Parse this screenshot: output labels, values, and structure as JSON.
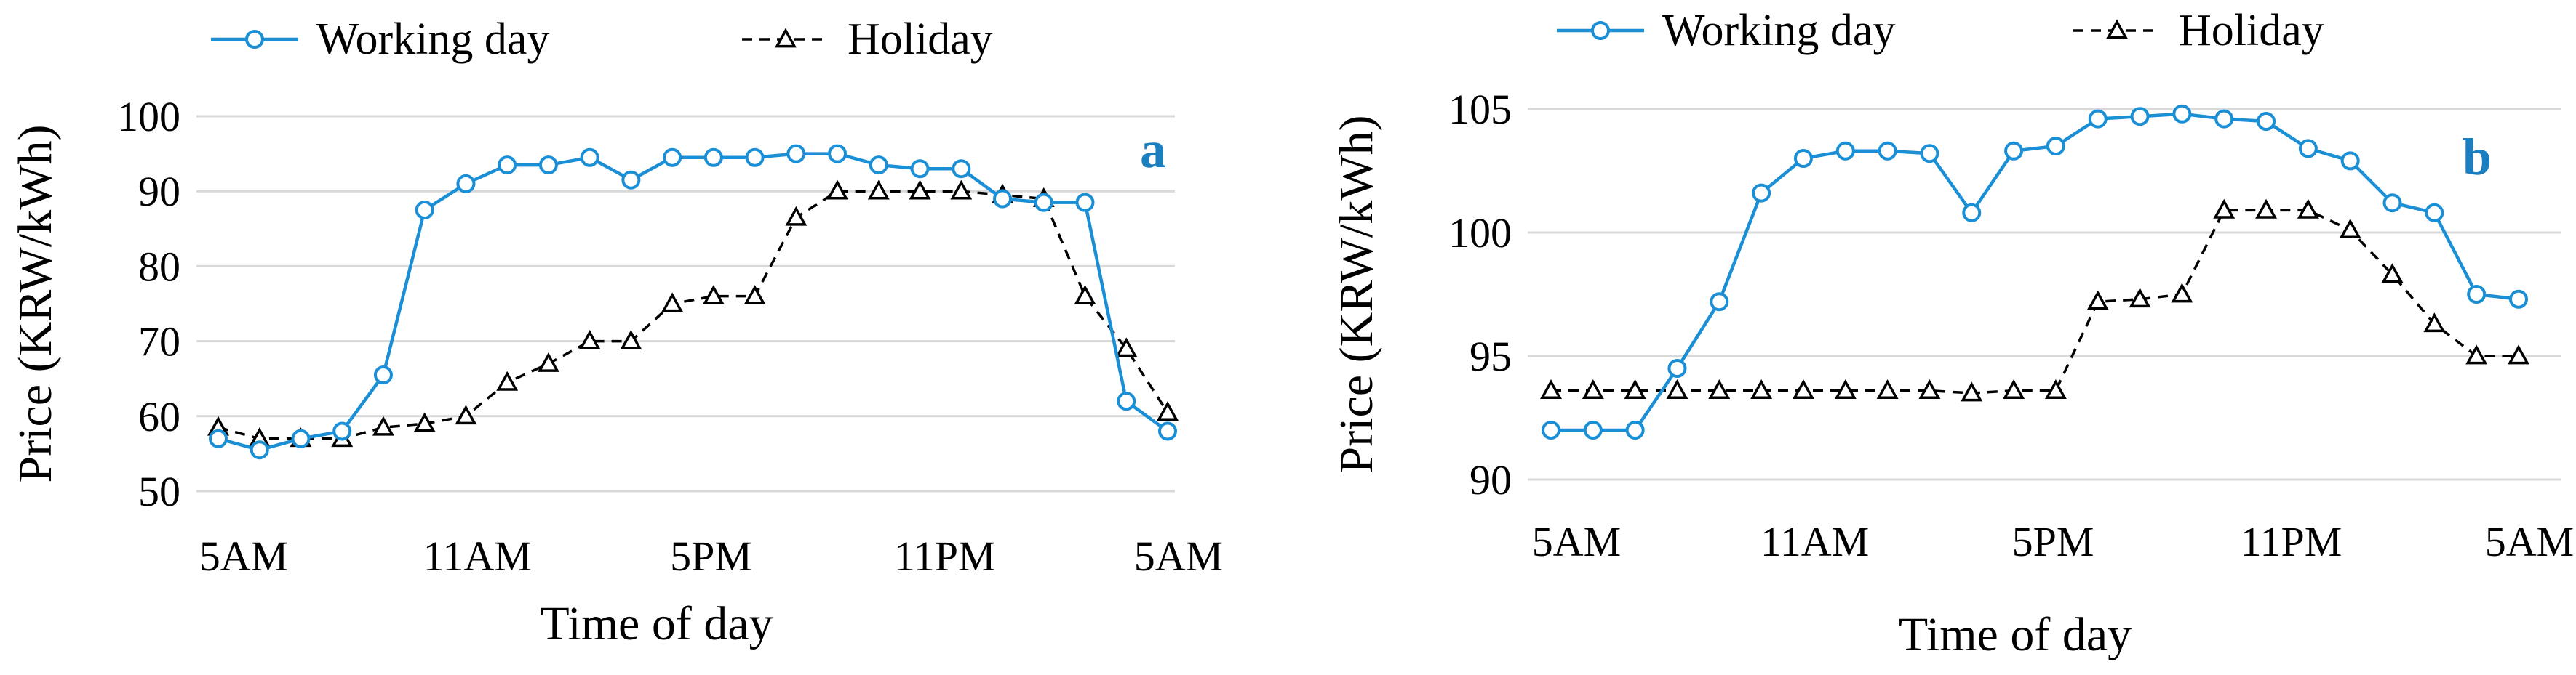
{
  "chart_data": [
    {
      "type": "line",
      "panel_label": "a",
      "legend": [
        "Working day",
        "Holiday"
      ],
      "xlabel": "Time of day",
      "ylabel": "Price (KRW/kWh)",
      "xtick_labels": [
        "5AM",
        "11AM",
        "5PM",
        "11PM",
        "5AM"
      ],
      "ylim": [
        50,
        100
      ],
      "yticks": [
        50,
        60,
        70,
        80,
        90,
        100
      ],
      "x": [
        0,
        1,
        2,
        3,
        4,
        5,
        6,
        7,
        8,
        9,
        10,
        11,
        12,
        13,
        14,
        15,
        16,
        17,
        18,
        19,
        20,
        21,
        22,
        23
      ],
      "series": [
        {
          "name": "Working day",
          "color": "#1a8fd6",
          "marker": "circle",
          "dash": "solid",
          "values": [
            57,
            55.5,
            57,
            58,
            65.5,
            87.5,
            91,
            93.5,
            93.5,
            94.5,
            91.5,
            94.5,
            94.5,
            94.5,
            95,
            95,
            93.5,
            93,
            93,
            89,
            88.5,
            88.5,
            62,
            58
          ]
        },
        {
          "name": "Holiday",
          "color": "#000000",
          "marker": "triangle",
          "dash": "dashed",
          "values": [
            58.5,
            57,
            57,
            57,
            58.5,
            59,
            60,
            64.5,
            67,
            70,
            70,
            75,
            76,
            76,
            86.5,
            90,
            90,
            90,
            90,
            89.5,
            89,
            76,
            69,
            60.5
          ]
        }
      ]
    },
    {
      "type": "line",
      "panel_label": "b",
      "legend": [
        "Working day",
        "Holiday"
      ],
      "xlabel": "Time of day",
      "ylabel": "Price (KRW/kWh)",
      "xtick_labels": [
        "5AM",
        "11AM",
        "5PM",
        "11PM",
        "5AM"
      ],
      "ylim": [
        90,
        105
      ],
      "yticks": [
        90,
        95,
        100,
        105
      ],
      "x": [
        0,
        1,
        2,
        3,
        4,
        5,
        6,
        7,
        8,
        9,
        10,
        11,
        12,
        13,
        14,
        15,
        16,
        17,
        18,
        19,
        20,
        21,
        22,
        23
      ],
      "series": [
        {
          "name": "Working day",
          "color": "#1a8fd6",
          "marker": "circle",
          "dash": "solid",
          "values": [
            92,
            92,
            92,
            94.5,
            97.2,
            101.6,
            103,
            103.3,
            103.3,
            103.2,
            100.8,
            103.3,
            103.5,
            104.6,
            104.7,
            104.8,
            104.6,
            104.5,
            103.4,
            102.9,
            101.2,
            100.8,
            97.5,
            97.3
          ]
        },
        {
          "name": "Holiday",
          "color": "#000000",
          "marker": "triangle",
          "dash": "dashed",
          "values": [
            93.6,
            93.6,
            93.6,
            93.6,
            93.6,
            93.6,
            93.6,
            93.6,
            93.6,
            93.6,
            93.5,
            93.6,
            93.6,
            97.2,
            97.3,
            97.5,
            100.9,
            100.9,
            100.9,
            100.1,
            98.3,
            96.3,
            95,
            95
          ]
        }
      ]
    }
  ]
}
